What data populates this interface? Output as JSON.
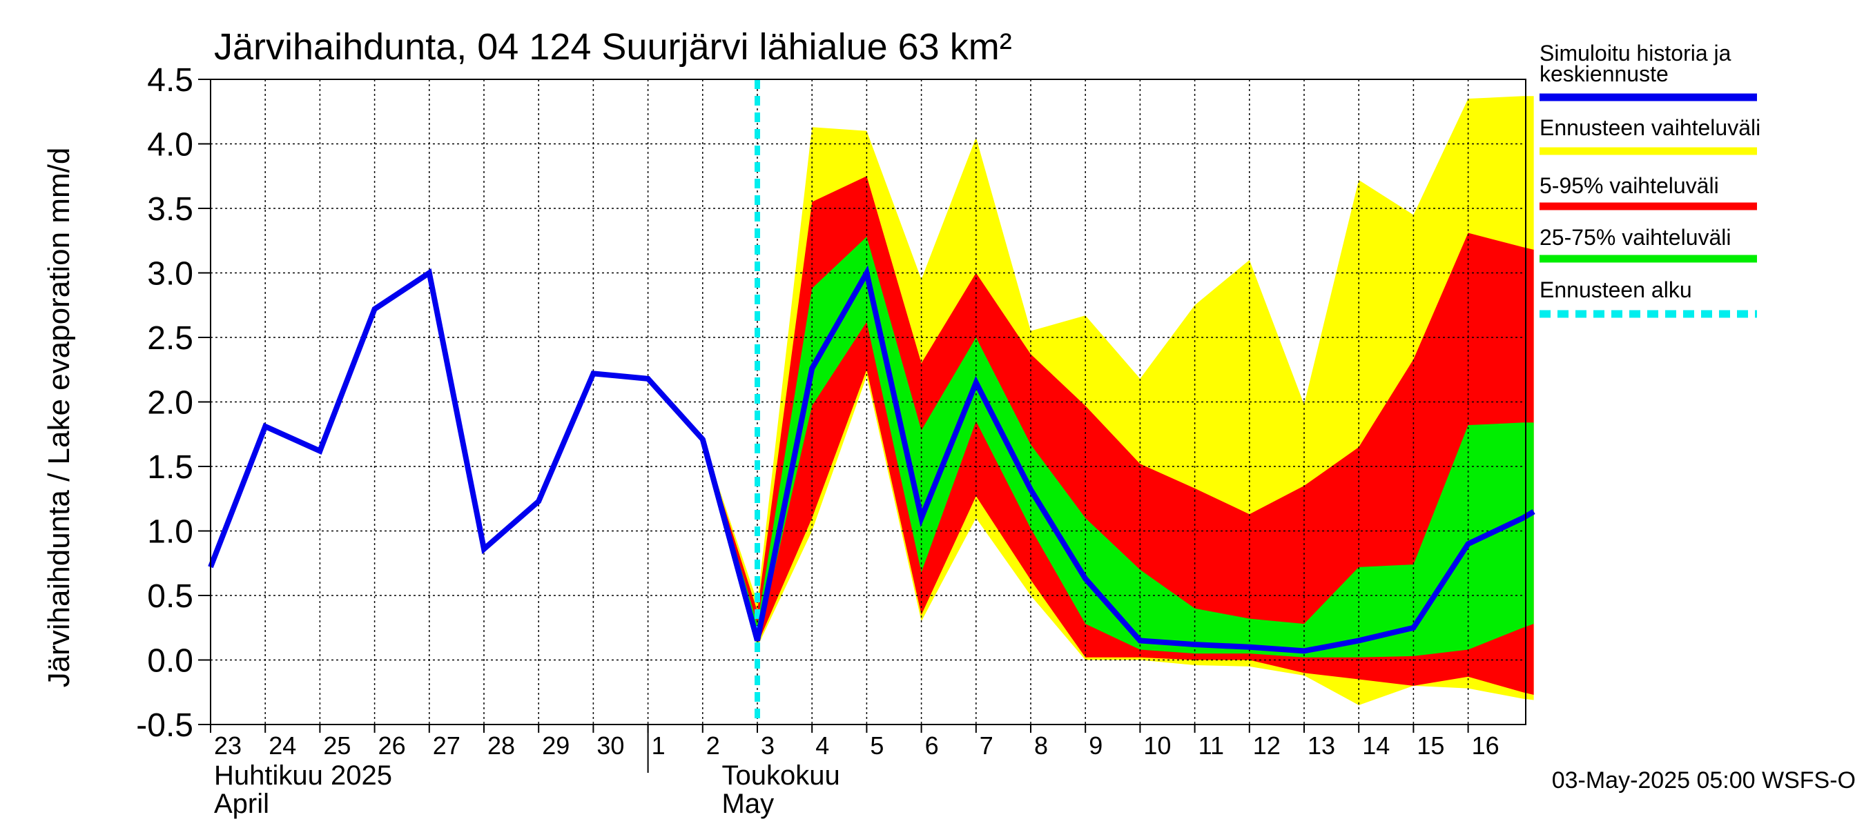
{
  "chart_data": {
    "type": "area",
    "title": "Järvihaihdunta, 04 124 Suurjärvi lähialue 63 km²",
    "ylabel": "Järvihaihdunta / Lake evaporation   mm/d",
    "ylim": [
      -0.5,
      4.5
    ],
    "yticks": [
      "4.5",
      "4.0",
      "3.5",
      "3.0",
      "2.5",
      "2.0",
      "1.5",
      "1.0",
      "0.5",
      "0.0",
      "-0.5"
    ],
    "ytick_values": [
      4.5,
      4.0,
      3.5,
      3.0,
      2.5,
      2.0,
      1.5,
      1.0,
      0.5,
      0.0,
      -0.5
    ],
    "xlim": [
      0,
      24.2
    ],
    "grid": true,
    "day_labels": [
      "23",
      "24",
      "25",
      "26",
      "27",
      "28",
      "29",
      "30",
      "1",
      "2",
      "3",
      "4",
      "5",
      "6",
      "7",
      "8",
      "9",
      "10",
      "11",
      "12",
      "13",
      "14",
      "15",
      "16"
    ],
    "month_labels": {
      "april_fi": "Huhtikuu  2025",
      "april_en": "April",
      "may_fi": "Toukokuu",
      "may_en": "May"
    },
    "forecast_start_x": 10,
    "history": {
      "name": "Simuloitu historia ja keskiennuste",
      "x": [
        0,
        1,
        2,
        3,
        4,
        5,
        6,
        7,
        8,
        9,
        10
      ],
      "y": [
        0.72,
        1.81,
        1.62,
        2.72,
        3.0,
        0.86,
        1.23,
        2.22,
        2.18,
        1.71,
        0.15
      ]
    },
    "forecast_x": [
      9,
      10,
      11,
      12,
      13,
      14,
      15,
      16,
      17,
      18,
      19,
      20,
      21,
      22,
      23,
      24,
      24.2
    ],
    "forecast_median": [
      1.71,
      0.15,
      2.26,
      3.0,
      1.1,
      2.15,
      1.32,
      0.63,
      0.15,
      0.12,
      0.1,
      0.07,
      0.15,
      0.25,
      0.9,
      1.1,
      1.15
    ],
    "band_full_upper": [
      1.71,
      0.45,
      4.13,
      4.1,
      2.95,
      4.05,
      2.55,
      2.67,
      2.18,
      2.75,
      3.1,
      1.98,
      3.72,
      3.45,
      4.35,
      4.37,
      4.37
    ],
    "band_full_lower": [
      1.71,
      0.1,
      1.0,
      2.2,
      0.3,
      1.1,
      0.5,
      0.0,
      0.0,
      -0.04,
      -0.05,
      -0.12,
      -0.35,
      -0.2,
      -0.22,
      -0.3,
      -0.31
    ],
    "band_5_95_upper": [
      1.71,
      0.38,
      3.55,
      3.75,
      2.3,
      3.0,
      2.37,
      1.97,
      1.52,
      1.33,
      1.13,
      1.35,
      1.65,
      2.33,
      3.31,
      3.2,
      3.18
    ],
    "band_5_95_lower": [
      1.71,
      0.12,
      1.1,
      2.25,
      0.35,
      1.27,
      0.62,
      0.02,
      0.02,
      0.0,
      0.0,
      -0.1,
      -0.15,
      -0.2,
      -0.13,
      -0.25,
      -0.27
    ],
    "band_25_75_upper": [
      1.71,
      0.28,
      2.88,
      3.28,
      1.78,
      2.5,
      1.67,
      1.1,
      0.7,
      0.4,
      0.32,
      0.28,
      0.72,
      0.74,
      1.82,
      1.84,
      1.84
    ],
    "band_25_75_lower": [
      1.71,
      0.12,
      1.97,
      2.62,
      0.68,
      1.85,
      1.02,
      0.28,
      0.08,
      0.05,
      0.05,
      0.02,
      0.02,
      0.03,
      0.08,
      0.25,
      0.28
    ],
    "legend": [
      {
        "label_line1": "Simuloitu historia ja",
        "label_line2": "keskiennuste",
        "color": "#0000ee",
        "style": "solid"
      },
      {
        "label_line1": "Ennusteen vaihteluväli",
        "color": "#ffff00",
        "style": "solid"
      },
      {
        "label_line1": "5-95% vaihteluväli",
        "color": "#ff0000",
        "style": "solid"
      },
      {
        "label_line1": "25-75% vaihteluväli",
        "color": "#00ee00",
        "style": "solid"
      },
      {
        "label_line1": "Ennusteen alku",
        "color": "#00eeee",
        "style": "dashed"
      }
    ],
    "footer": "03-May-2025 05:00 WSFS-O"
  }
}
